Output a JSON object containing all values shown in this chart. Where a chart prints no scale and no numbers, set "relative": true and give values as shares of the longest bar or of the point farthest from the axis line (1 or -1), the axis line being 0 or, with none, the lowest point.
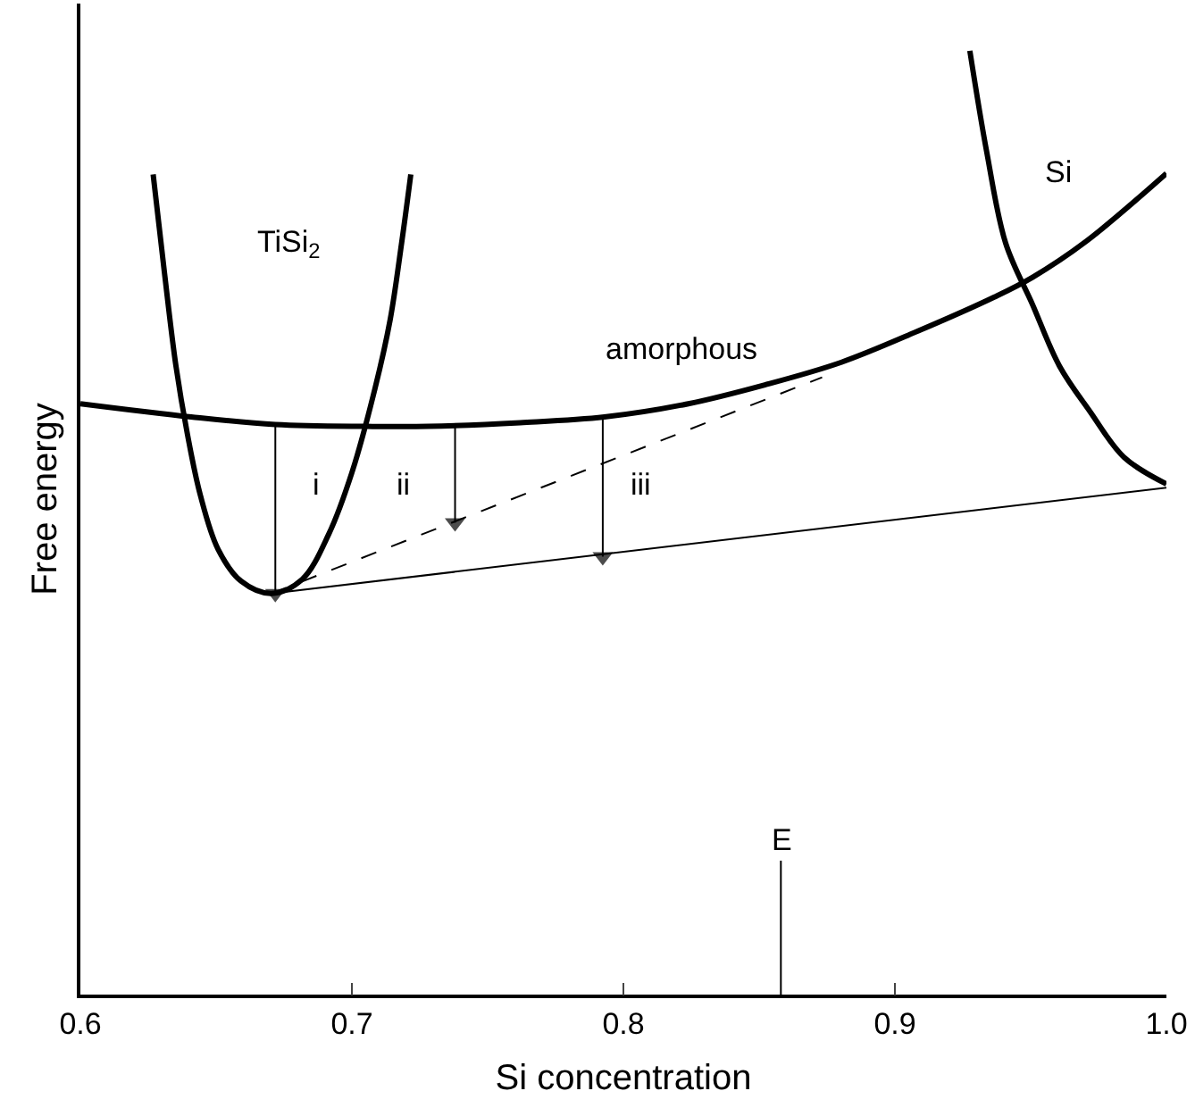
{
  "chart_data": {
    "type": "line",
    "relative": true,
    "xlabel": "Si concentration",
    "ylabel": "Free energy",
    "xlim": [
      0.6,
      1.0
    ],
    "xticks": [
      {
        "value": 0.6,
        "label": "0.6"
      },
      {
        "value": 0.7,
        "label": "0.7"
      },
      {
        "value": 0.8,
        "label": "0.8"
      },
      {
        "value": 0.9,
        "label": "0.9"
      },
      {
        "value": 1.0,
        "label": "1.0"
      }
    ],
    "marker": "none",
    "series": [
      {
        "color": "#000000",
        "x": [
          0.6268,
          0.631,
          0.6352,
          0.6394,
          0.6442,
          0.6507,
          0.6592,
          0.6704,
          0.6817,
          0.6915,
          0.7,
          0.7085,
          0.7141,
          0.7183,
          0.7217
        ],
        "values": [
          0.869,
          0.764,
          0.666,
          0.594,
          0.529,
          0.472,
          0.438,
          0.425,
          0.44,
          0.488,
          0.553,
          0.642,
          0.715,
          0.796,
          0.869
        ]
      },
      {
        "color": "#000000",
        "x": [
          0.6,
          0.6408,
          0.6718,
          0.7056,
          0.7282,
          0.762,
          0.793,
          0.8239,
          0.8521,
          0.8803,
          0.9085,
          0.9366,
          0.9507,
          0.9704,
          1.0
        ],
        "values": [
          0.626,
          0.612,
          0.604,
          0.602,
          0.602,
          0.606,
          0.612,
          0.626,
          0.646,
          0.67,
          0.703,
          0.739,
          0.76,
          0.798,
          0.87
        ]
      },
      {
        "color": "#000000",
        "x": [
          0.9276,
          0.9338,
          0.9408,
          0.9507,
          0.9606,
          0.9718,
          0.9845,
          1.0
        ],
        "values": [
          1.0,
          0.893,
          0.796,
          0.731,
          0.666,
          0.618,
          0.569,
          0.541
        ]
      },
      {
        "color": "#000000",
        "line_style": "solid",
        "x": [
          0.6704,
          1.0
        ],
        "values": [
          0.425,
          0.537
        ]
      },
      {
        "color": "#000000",
        "line_style": "dashed",
        "x": [
          0.6704,
          0.8732
        ],
        "values": [
          0.425,
          0.654
        ]
      },
      {
        "color": "#000000",
        "line_style": "solid",
        "marker": "triangle",
        "x": [
          0.6718,
          0.6718
        ],
        "values": [
          0.604,
          0.425
        ]
      },
      {
        "color": "#000000",
        "line_style": "solid",
        "marker": "triangle",
        "x": [
          0.738,
          0.738
        ],
        "values": [
          0.602,
          0.5
        ]
      },
      {
        "color": "#000000",
        "line_style": "solid",
        "marker": "triangle",
        "x": [
          0.7924,
          0.7924
        ],
        "values": [
          0.612,
          0.464
        ]
      }
    ],
    "annotations": [
      "TiSi$_{2}$",
      "Si",
      "amorphous",
      "i",
      "ii",
      "iii"
    ],
    "ref_lines": [
      {
        "axis": "x",
        "value": 0.858,
        "label": "E",
        "color": "#000000"
      }
    ]
  }
}
